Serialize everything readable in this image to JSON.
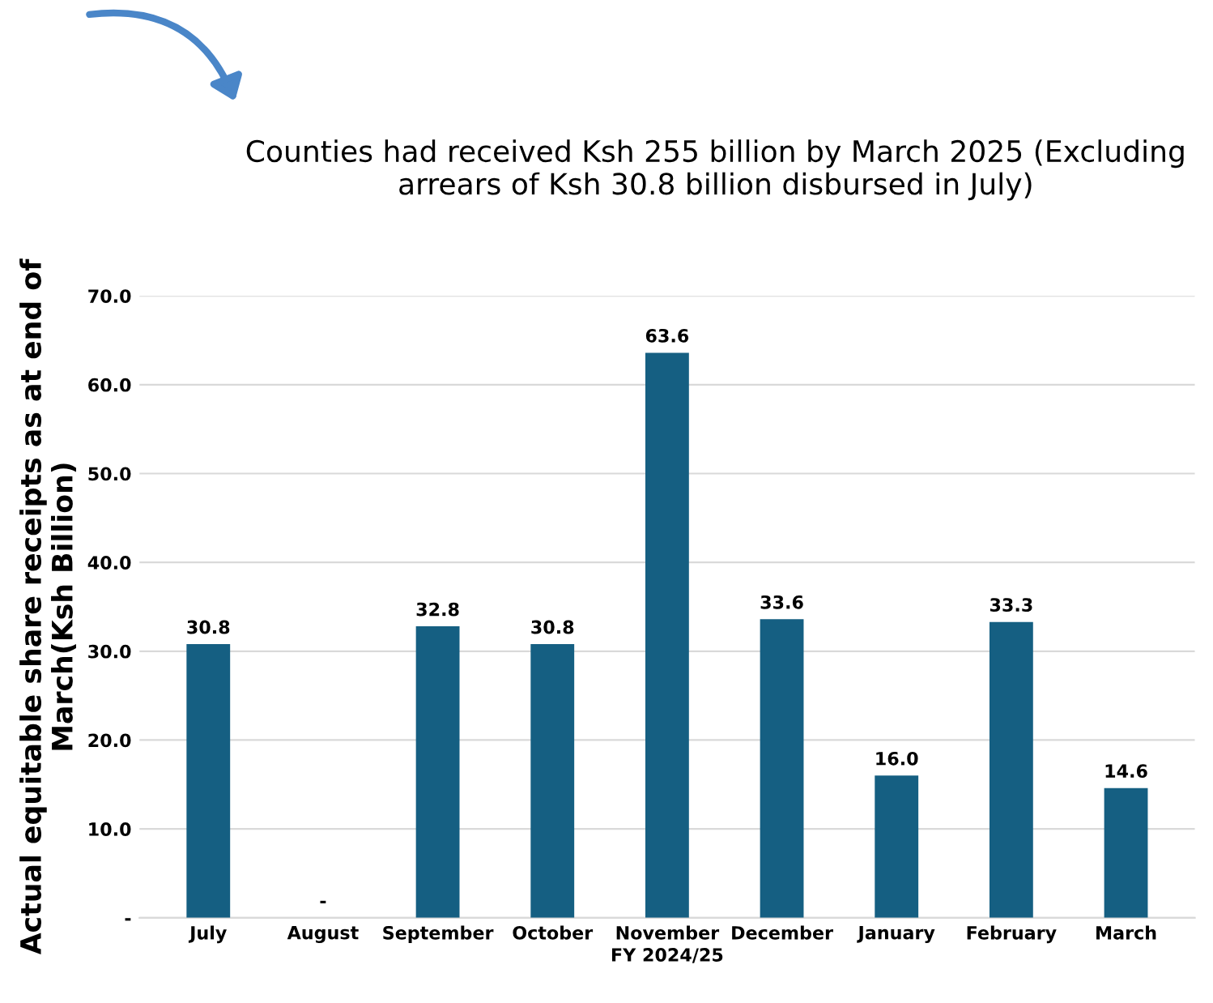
{
  "chart_data": {
    "type": "bar",
    "title": "Counties had received Ksh 255 billion by March 2025 (Excluding arrears of Ksh 30.8 billion disbursed in July)",
    "xlabel": "FY 2024/25",
    "ylabel": "Actual equitable share receipts as at end of March(Ksh Billion)",
    "categories": [
      "July",
      "August",
      "September",
      "October",
      "November",
      "December",
      "January",
      "February",
      "March"
    ],
    "values": [
      30.8,
      0,
      32.8,
      30.8,
      63.6,
      33.6,
      16.0,
      33.3,
      14.6
    ],
    "value_labels": [
      "30.8",
      "-",
      "32.8",
      "30.8",
      "63.6",
      "33.6",
      "16.0",
      "33.3",
      "14.6"
    ],
    "color": "#155f82",
    "ylim": [
      0,
      70
    ],
    "yticks": [
      {
        "value": 0,
        "label": "-"
      },
      {
        "value": 10,
        "label": "10.0"
      },
      {
        "value": 20,
        "label": "20.0"
      },
      {
        "value": 30,
        "label": "30.0"
      },
      {
        "value": 40,
        "label": "40.0"
      },
      {
        "value": 50,
        "label": "50.0"
      },
      {
        "value": 60,
        "label": "60.0"
      },
      {
        "value": 70,
        "label": "70.0"
      }
    ],
    "grid": "y"
  }
}
